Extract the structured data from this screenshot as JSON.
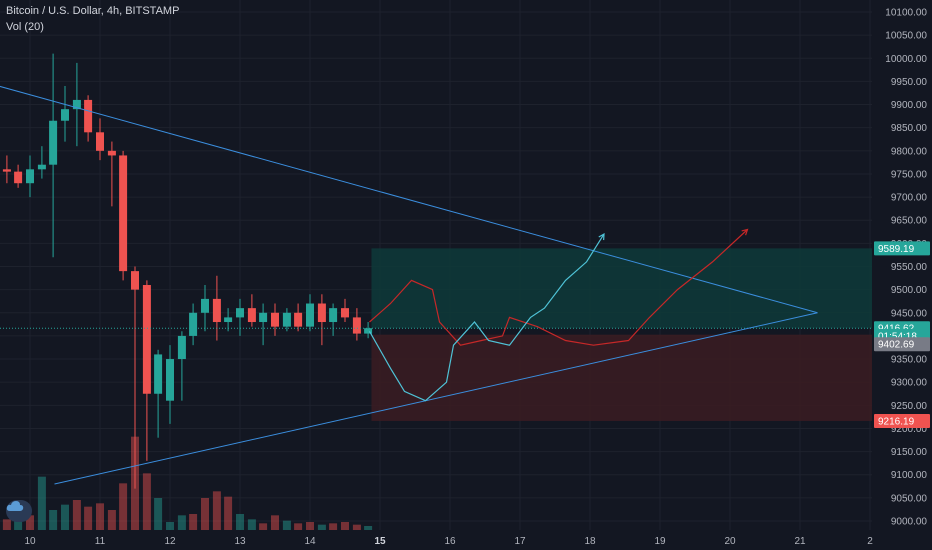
{
  "header": {
    "symbol_line": "Bitcoin / U.S. Dollar, 4h, BITSTAMP",
    "indicator": "Vol (20)"
  },
  "colors": {
    "bg": "#131722",
    "grid": "#1e222d",
    "up": "#26a69a",
    "down": "#ef5350",
    "trendline": "#3b8ede",
    "target_zone": "#0e3a3a",
    "stop_zone": "#3b1c22",
    "drawing_red": "#c62828",
    "drawing_teal": "#4fc3d7"
  },
  "price_axis": {
    "ticks": [
      "10100.00",
      "10050.00",
      "10000.00",
      "9950.00",
      "9900.00",
      "9850.00",
      "9800.00",
      "9750.00",
      "9700.00",
      "9650.00",
      "9600.00",
      "9550.00",
      "9500.00",
      "9450.00",
      "9400.00",
      "9350.00",
      "9300.00",
      "9250.00",
      "9200.00",
      "9150.00",
      "9100.00",
      "9050.00",
      "9000.00"
    ],
    "tags": [
      {
        "label": "9589.19",
        "value": 9589.19,
        "color": "#26a69a"
      },
      {
        "label": "9416.62",
        "value": 9416.62,
        "color": "#26a69a"
      },
      {
        "label": "01:54:18",
        "value": 9400.0,
        "color": "#26a69a"
      },
      {
        "label": "9402.69",
        "value": 9382.0,
        "color": "#787b86"
      },
      {
        "label": "9216.19",
        "value": 9216.19,
        "color": "#ef5350"
      }
    ]
  },
  "time_axis": {
    "ticks": [
      {
        "label": "10",
        "day": 10,
        "bold": false
      },
      {
        "label": "11",
        "day": 11,
        "bold": false
      },
      {
        "label": "12",
        "day": 12,
        "bold": false
      },
      {
        "label": "13",
        "day": 13,
        "bold": false
      },
      {
        "label": "14",
        "day": 14,
        "bold": false
      },
      {
        "label": "15",
        "day": 15,
        "bold": true
      },
      {
        "label": "16",
        "day": 16,
        "bold": false
      },
      {
        "label": "17",
        "day": 17,
        "bold": false
      },
      {
        "label": "18",
        "day": 18,
        "bold": false
      },
      {
        "label": "19",
        "day": 19,
        "bold": false
      },
      {
        "label": "20",
        "day": 20,
        "bold": false
      },
      {
        "label": "21",
        "day": 21,
        "bold": false
      },
      {
        "label": "2",
        "day": 22,
        "bold": false
      }
    ]
  },
  "chart_data": {
    "type": "candlestick",
    "x_unit": "day of month (4h bars)",
    "ylim": [
      8990,
      10120
    ],
    "candles": [
      {
        "t": 9.75,
        "o": 9730,
        "h": 9770,
        "l": 9695,
        "c": 9735
      },
      {
        "t": 9.92,
        "o": 9735,
        "h": 9790,
        "l": 9700,
        "c": 9775
      },
      {
        "t": 10.08,
        "o": 9775,
        "h": 9815,
        "l": 9740,
        "c": 9790
      },
      {
        "t": 10.25,
        "o": 9790,
        "h": 9810,
        "l": 9740,
        "c": 9760
      },
      {
        "t": 10.42,
        "o": 9760,
        "h": 9790,
        "l": 9730,
        "c": 9755
      },
      {
        "t": 10.58,
        "o": 9755,
        "h": 9770,
        "l": 9720,
        "c": 9730
      },
      {
        "t": 10.75,
        "o": 9730,
        "h": 9790,
        "l": 9700,
        "c": 9760
      },
      {
        "t": 10.92,
        "o": 9760,
        "h": 9810,
        "l": 9740,
        "c": 9770
      },
      {
        "t": 11.08,
        "o": 9770,
        "h": 10010,
        "l": 9570,
        "c": 9865
      },
      {
        "t": 11.25,
        "o": 9865,
        "h": 9940,
        "l": 9820,
        "c": 9890
      },
      {
        "t": 11.42,
        "o": 9890,
        "h": 9990,
        "l": 9810,
        "c": 9910
      },
      {
        "t": 11.58,
        "o": 9910,
        "h": 9920,
        "l": 9820,
        "c": 9840
      },
      {
        "t": 11.75,
        "o": 9840,
        "h": 9870,
        "l": 9780,
        "c": 9800
      },
      {
        "t": 11.92,
        "o": 9800,
        "h": 9820,
        "l": 9680,
        "c": 9790
      },
      {
        "t": 12.08,
        "o": 9790,
        "h": 9800,
        "l": 9520,
        "c": 9540
      },
      {
        "t": 12.25,
        "o": 9540,
        "h": 9550,
        "l": 9070,
        "c": 9500
      },
      {
        "t": 12.42,
        "o": 9510,
        "h": 9520,
        "l": 9130,
        "c": 9275
      },
      {
        "t": 12.58,
        "o": 9275,
        "h": 9370,
        "l": 9180,
        "c": 9360
      },
      {
        "t": 12.75,
        "o": 9260,
        "h": 9380,
        "l": 9210,
        "c": 9350
      },
      {
        "t": 12.92,
        "o": 9350,
        "h": 9410,
        "l": 9260,
        "c": 9400
      },
      {
        "t": 13.08,
        "o": 9400,
        "h": 9470,
        "l": 9380,
        "c": 9450
      },
      {
        "t": 13.25,
        "o": 9450,
        "h": 9510,
        "l": 9410,
        "c": 9480
      },
      {
        "t": 13.42,
        "o": 9480,
        "h": 9530,
        "l": 9390,
        "c": 9430
      },
      {
        "t": 13.58,
        "o": 9430,
        "h": 9460,
        "l": 9410,
        "c": 9440
      },
      {
        "t": 13.75,
        "o": 9440,
        "h": 9480,
        "l": 9400,
        "c": 9460
      },
      {
        "t": 13.92,
        "o": 9460,
        "h": 9490,
        "l": 9420,
        "c": 9430
      },
      {
        "t": 14.08,
        "o": 9430,
        "h": 9470,
        "l": 9380,
        "c": 9450
      },
      {
        "t": 14.25,
        "o": 9450,
        "h": 9470,
        "l": 9400,
        "c": 9420
      },
      {
        "t": 14.42,
        "o": 9420,
        "h": 9460,
        "l": 9410,
        "c": 9450
      },
      {
        "t": 14.58,
        "o": 9450,
        "h": 9470,
        "l": 9410,
        "c": 9420
      },
      {
        "t": 14.75,
        "o": 9420,
        "h": 9490,
        "l": 9410,
        "c": 9470
      },
      {
        "t": 14.92,
        "o": 9470,
        "h": 9490,
        "l": 9380,
        "c": 9430
      },
      {
        "t": 15.08,
        "o": 9430,
        "h": 9470,
        "l": 9400,
        "c": 9460
      },
      {
        "t": 15.25,
        "o": 9460,
        "h": 9480,
        "l": 9430,
        "c": 9440
      },
      {
        "t": 15.42,
        "o": 9440,
        "h": 9460,
        "l": 9390,
        "c": 9405
      },
      {
        "t": 15.58,
        "o": 9405,
        "h": 9430,
        "l": 9395,
        "c": 9416.62
      }
    ],
    "volumes": [
      {
        "t": 9.75,
        "v": 10,
        "up": true
      },
      {
        "t": 9.92,
        "v": 12,
        "up": true
      },
      {
        "t": 10.08,
        "v": 14,
        "up": false
      },
      {
        "t": 10.25,
        "v": 18,
        "up": false
      },
      {
        "t": 10.42,
        "v": 16,
        "up": false
      },
      {
        "t": 10.58,
        "v": 20,
        "up": true
      },
      {
        "t": 10.75,
        "v": 22,
        "up": false
      },
      {
        "t": 10.92,
        "v": 80,
        "up": true
      },
      {
        "t": 11.08,
        "v": 30,
        "up": true
      },
      {
        "t": 11.25,
        "v": 38,
        "up": true
      },
      {
        "t": 11.42,
        "v": 45,
        "up": false
      },
      {
        "t": 11.58,
        "v": 35,
        "up": false
      },
      {
        "t": 11.75,
        "v": 40,
        "up": false
      },
      {
        "t": 11.92,
        "v": 30,
        "up": false
      },
      {
        "t": 12.08,
        "v": 70,
        "up": false
      },
      {
        "t": 12.25,
        "v": 140,
        "up": false
      },
      {
        "t": 12.42,
        "v": 85,
        "up": false
      },
      {
        "t": 12.58,
        "v": 48,
        "up": true
      },
      {
        "t": 12.75,
        "v": 12,
        "up": true
      },
      {
        "t": 12.92,
        "v": 22,
        "up": true
      },
      {
        "t": 13.08,
        "v": 24,
        "up": false
      },
      {
        "t": 13.25,
        "v": 48,
        "up": false
      },
      {
        "t": 13.42,
        "v": 58,
        "up": false
      },
      {
        "t": 13.58,
        "v": 50,
        "up": false
      },
      {
        "t": 13.75,
        "v": 24,
        "up": true
      },
      {
        "t": 13.92,
        "v": 16,
        "up": true
      },
      {
        "t": 14.08,
        "v": 10,
        "up": false
      },
      {
        "t": 14.25,
        "v": 22,
        "up": false
      },
      {
        "t": 14.42,
        "v": 14,
        "up": true
      },
      {
        "t": 14.58,
        "v": 10,
        "up": false
      },
      {
        "t": 14.75,
        "v": 12,
        "up": false
      },
      {
        "t": 14.92,
        "v": 8,
        "up": true
      },
      {
        "t": 15.08,
        "v": 10,
        "up": false
      },
      {
        "t": 15.25,
        "v": 12,
        "up": false
      },
      {
        "t": 15.42,
        "v": 8,
        "up": false
      },
      {
        "t": 15.58,
        "v": 6,
        "up": true
      }
    ],
    "trendlines": [
      {
        "from": {
          "t": 10.3,
          "p": 9940
        },
        "to": {
          "t": 22.0,
          "p": 9450
        }
      },
      {
        "from": {
          "t": 11.1,
          "p": 9080
        },
        "to": {
          "t": 22.0,
          "p": 9450
        }
      }
    ],
    "target_zone": {
      "t_start": 15.6,
      "t_end": 22.0,
      "p_low": 9416.62,
      "p_high": 9589.19
    },
    "stop_zone": {
      "t_start": 15.6,
      "t_end": 22.0,
      "p_low": 9216.19,
      "p_high": 9402.69
    },
    "projection_red": [
      {
        "t": 15.6,
        "p": 9430
      },
      {
        "t": 15.9,
        "p": 9470
      },
      {
        "t": 16.2,
        "p": 9520
      },
      {
        "t": 16.5,
        "p": 9500
      },
      {
        "t": 16.6,
        "p": 9430
      },
      {
        "t": 16.9,
        "p": 9380
      },
      {
        "t": 17.2,
        "p": 9390
      },
      {
        "t": 17.5,
        "p": 9400
      },
      {
        "t": 17.6,
        "p": 9440
      },
      {
        "t": 18.0,
        "p": 9420
      },
      {
        "t": 18.4,
        "p": 9390
      },
      {
        "t": 18.8,
        "p": 9380
      },
      {
        "t": 19.3,
        "p": 9390
      },
      {
        "t": 19.6,
        "p": 9440
      },
      {
        "t": 20.0,
        "p": 9500
      },
      {
        "t": 20.5,
        "p": 9560
      },
      {
        "t": 21.0,
        "p": 9630
      }
    ],
    "projection_teal": [
      {
        "t": 15.6,
        "p": 9410
      },
      {
        "t": 15.9,
        "p": 9330
      },
      {
        "t": 16.1,
        "p": 9280
      },
      {
        "t": 16.4,
        "p": 9260
      },
      {
        "t": 16.7,
        "p": 9300
      },
      {
        "t": 16.8,
        "p": 9380
      },
      {
        "t": 17.1,
        "p": 9430
      },
      {
        "t": 17.3,
        "p": 9390
      },
      {
        "t": 17.6,
        "p": 9380
      },
      {
        "t": 17.9,
        "p": 9440
      },
      {
        "t": 18.1,
        "p": 9460
      },
      {
        "t": 18.4,
        "p": 9520
      },
      {
        "t": 18.7,
        "p": 9560
      },
      {
        "t": 18.95,
        "p": 9620
      }
    ],
    "current_price": 9416.62
  }
}
